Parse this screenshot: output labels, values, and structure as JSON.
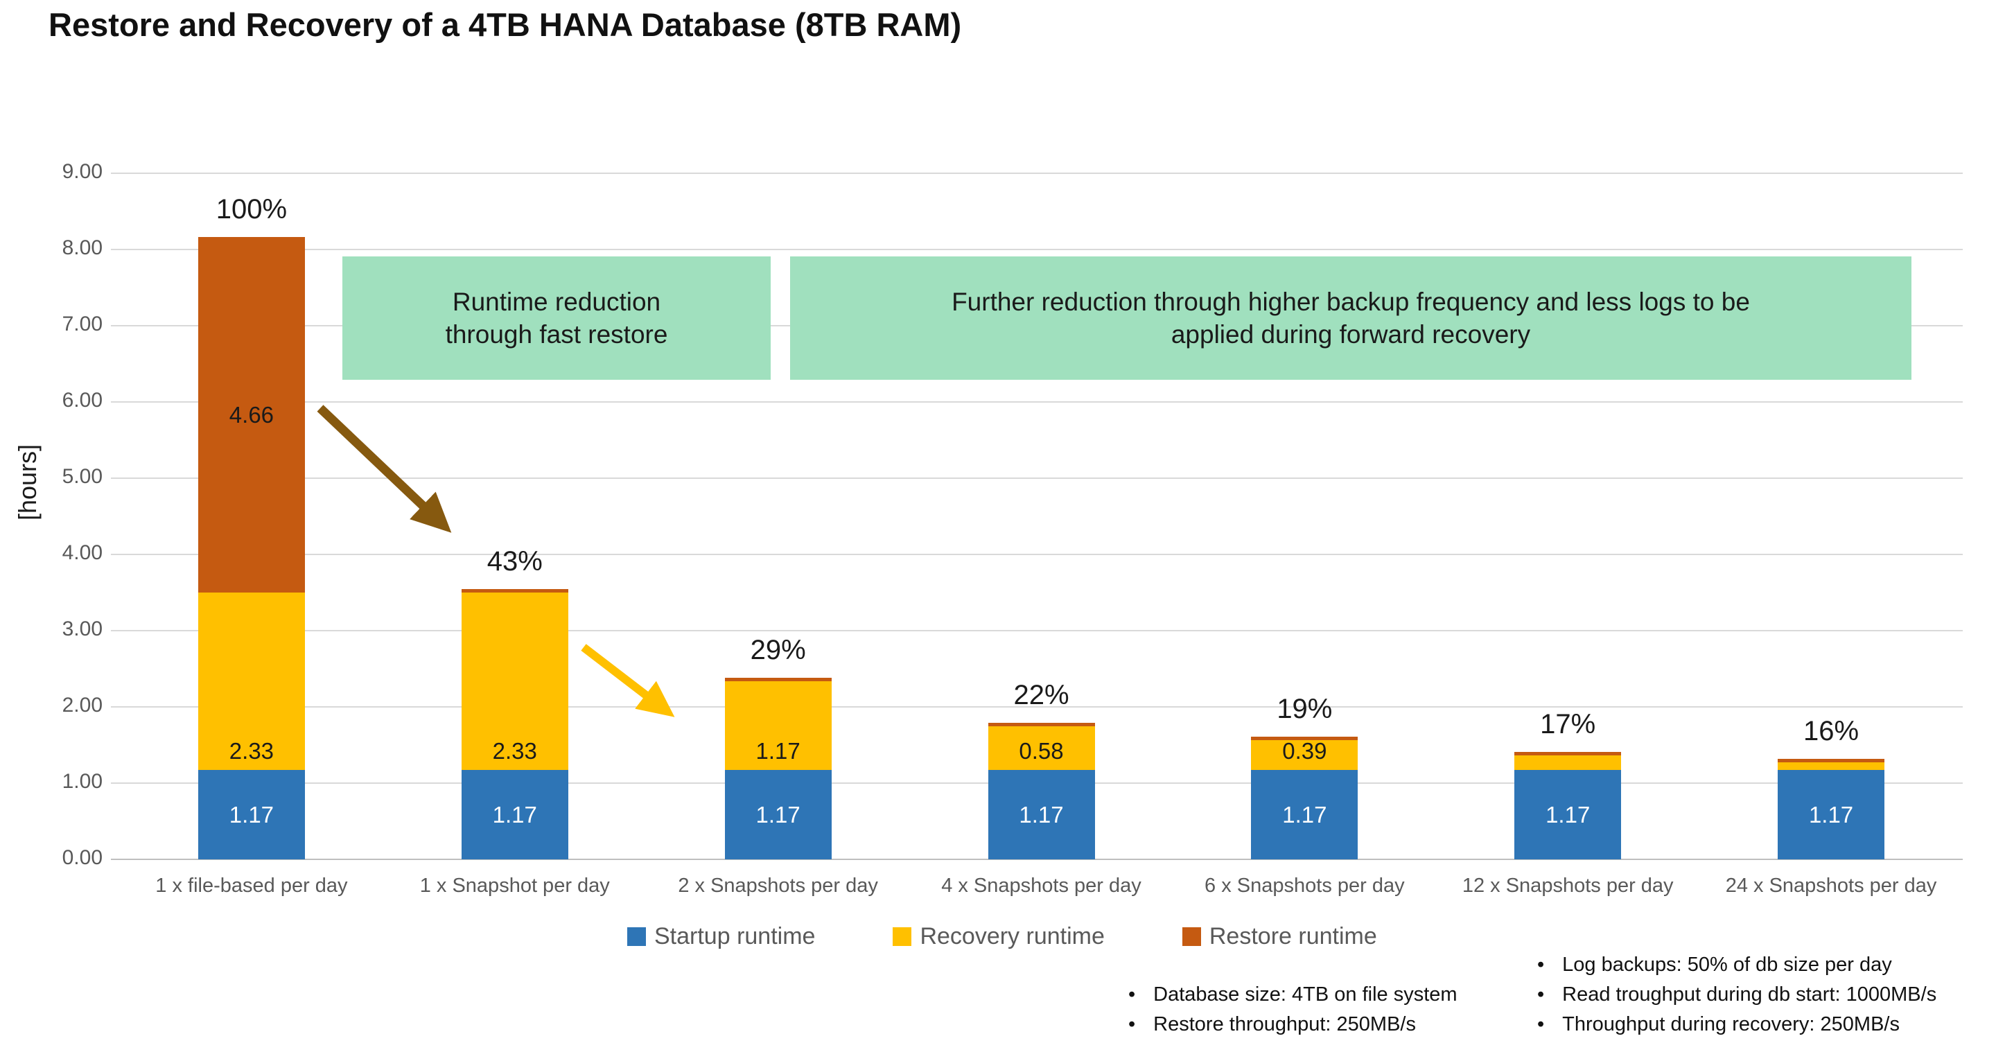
{
  "title": "Restore and Recovery of a 4TB HANA Database (8TB RAM)",
  "chart_data": {
    "type": "bar",
    "stacked": true,
    "title": "Restore and Recovery of a 4TB HANA Database (8TB RAM)",
    "xlabel": "",
    "ylabel": "[hours]",
    "ylim": [
      0,
      9
    ],
    "ytick_step": 1,
    "grid": true,
    "legend_position": "bottom",
    "categories": [
      "1 x file-based per day",
      "1 x Snapshot per day",
      "2 x Snapshots per day",
      "4 x Snapshots per day",
      "6 x Snapshots per day",
      "12 x Snapshots per day",
      "24 x Snapshots per day"
    ],
    "series": [
      {
        "name": "Startup runtime",
        "color": "#2e75b6",
        "values": [
          1.17,
          1.17,
          1.17,
          1.17,
          1.17,
          1.17,
          1.17
        ],
        "labels": [
          "1.17",
          "1.17",
          "1.17",
          "1.17",
          "1.17",
          "1.17",
          "1.17"
        ],
        "label_color": "#ffffff",
        "label_placement": "center"
      },
      {
        "name": "Recovery runtime",
        "color": "#ffc000",
        "values": [
          2.33,
          2.33,
          1.17,
          0.58,
          0.39,
          0.19,
          0.1
        ],
        "labels": [
          "2.33",
          "2.33",
          "1.17",
          "0.58",
          "0.39",
          "",
          ""
        ],
        "label_color": "#1a1a1a",
        "label_placement": "base"
      },
      {
        "name": "Restore runtime",
        "color": "#c55a11",
        "values": [
          4.66,
          0.03,
          0.03,
          0.03,
          0.03,
          0.03,
          0.03
        ],
        "labels": [
          "4.66",
          "",
          "",
          "",
          "",
          "",
          ""
        ],
        "label_color": "#1a1a1a",
        "label_placement": "center"
      }
    ],
    "totals_pct": [
      "100%",
      "43%",
      "29%",
      "22%",
      "19%",
      "17%",
      "16%"
    ]
  },
  "annotations": {
    "box1": "Runtime reduction\nthrough fast restore",
    "box2": "Further reduction through higher backup frequency and less logs to be\napplied during forward recovery",
    "box_color": "#a0e0be",
    "arrow1_color": "#86590f",
    "arrow2_color": "#ffc000"
  },
  "legend": [
    {
      "label": "Startup runtime",
      "color": "#2e75b6"
    },
    {
      "label": "Recovery runtime",
      "color": "#ffc000"
    },
    {
      "label": "Restore runtime",
      "color": "#c55a11"
    }
  ],
  "notes_left": [
    "Database size: 4TB on file system",
    "Restore throughput: 250MB/s"
  ],
  "notes_right": [
    "Log backups: 50% of db size per day",
    "Read troughput during db start: 1000MB/s",
    "Throughput during recovery: 250MB/s"
  ],
  "colors": {
    "startup": "#2e75b6",
    "recovery": "#ffc000",
    "restore": "#c55a11",
    "gridline": "#d9d9d9",
    "axis_text": "#595959",
    "annotation_box": "#a0e0be"
  }
}
